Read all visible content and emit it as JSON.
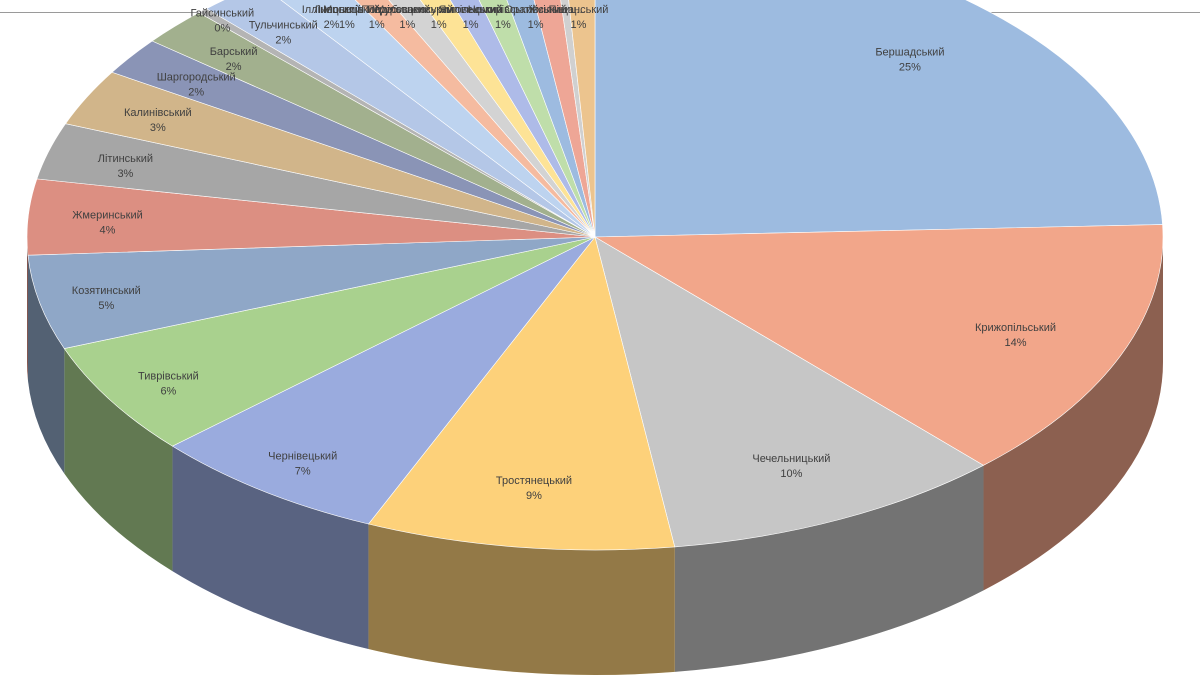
{
  "chart_data": {
    "type": "pie",
    "title": "",
    "categories": [
      "Бершадський",
      "Крижопільський",
      "Чечельницький",
      "Тростянецький",
      "Чернівецький",
      "Тиврівський",
      "Козятинський",
      "Жмеринський",
      "Літинський",
      "Калинівський",
      "Шаргородський",
      "Барський",
      "Гайсинський",
      "Тульчинський",
      "Іллінецький",
      "Липовецький",
      "Могилів-Подільський",
      "Погребищенський",
      "Мурованокуриловецький",
      "Ямпільський",
      "Немирівський",
      "Оратівський",
      "Хмільниц...",
      "Піщанський"
    ],
    "values": [
      25,
      14,
      10,
      9,
      7,
      6,
      5,
      4,
      3,
      3,
      2,
      2,
      0,
      2,
      2,
      1,
      1,
      1,
      1,
      1,
      1,
      1,
      0,
      1
    ],
    "value_labels": [
      "25%",
      "14%",
      "10%",
      "9%",
      "7%",
      "6%",
      "5%",
      "4%",
      "3%",
      "3%",
      "2%",
      "2%",
      "0%",
      "2%",
      "2%",
      "1%",
      "1%",
      "1%",
      "1%",
      "1%",
      "1%",
      "1%",
      "",
      "1%"
    ],
    "colors": [
      "#9dbbe0",
      "#f2a68a",
      "#c6c6c6",
      "#fdd17a",
      "#9aabde",
      "#a9d18e",
      "#8fa7c7",
      "#dc8f82",
      "#a6a6a6",
      "#d1b58a",
      "#8a94b6",
      "#a2b08e",
      "#b4b4b4",
      "#b4c7e7",
      "#bdd3ef",
      "#f5bba0",
      "#d3d3d3",
      "#fde396",
      "#aebbe8",
      "#bfdeaa",
      "#9dbbe0",
      "#eea696",
      "#d0d0d0",
      "#ecc48e"
    ],
    "legend": "none",
    "style": "3d-pie"
  }
}
